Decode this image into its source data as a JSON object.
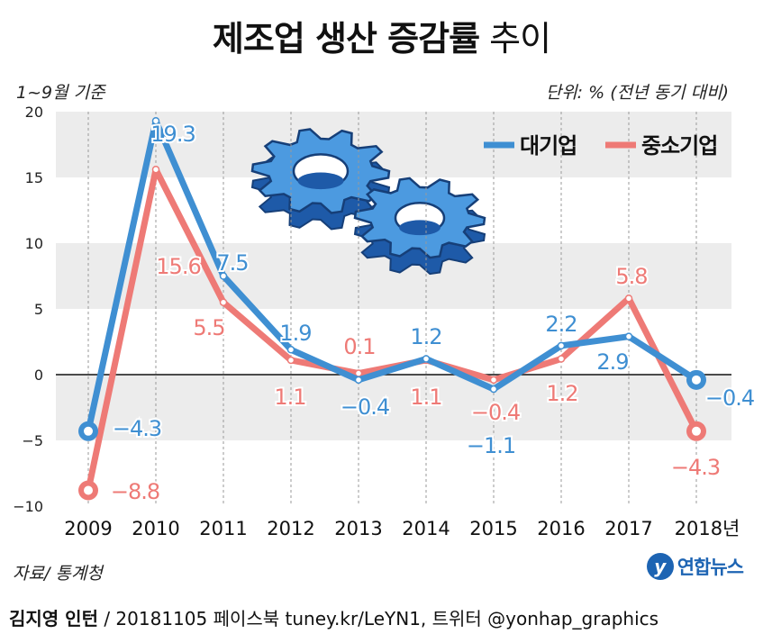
{
  "header": {
    "title_bold": "제조업 생산 증감률",
    "title_light": "추이",
    "note_left": "1~9월 기준",
    "note_right": "단위: % (전년 동기 대비)"
  },
  "source": "자료/ 통계청",
  "logo": {
    "mark": "y",
    "text": "연합뉴스"
  },
  "footer": {
    "author": "김지영 인턴",
    "rest": " / 20181105  페이스북 tuney.kr/LeYN1, 트위터 @yonhap_graphics"
  },
  "colors": {
    "large": "#3f8fd2",
    "sme": "#ee7a76",
    "band": "#ececec"
  },
  "chart_data": {
    "type": "line",
    "title": "제조업 생산 증감률 추이",
    "categories": [
      "2009",
      "2010",
      "2011",
      "2012",
      "2013",
      "2014",
      "2015",
      "2016",
      "2017",
      "2018년"
    ],
    "ylim": [
      -10,
      20
    ],
    "yticks": [
      20,
      15,
      10,
      5,
      0,
      -5,
      -10
    ],
    "ytick_labels": [
      "20",
      "15",
      "10",
      "5",
      "0",
      "−5",
      "−10"
    ],
    "legend_position": "top-right",
    "series": [
      {
        "name": "대기업",
        "color": "#3f8fd2",
        "values": [
          -4.3,
          19.3,
          7.5,
          1.9,
          -0.4,
          1.2,
          -1.1,
          2.2,
          2.9,
          -0.4
        ],
        "labels": [
          "−4.3",
          "19.3",
          "7.5",
          "1.9",
          "−0.4",
          "1.2",
          "−1.1",
          "2.2",
          "2.9",
          "−0.4"
        ]
      },
      {
        "name": "중소기업",
        "color": "#ee7a76",
        "values": [
          -8.8,
          15.6,
          5.5,
          1.1,
          0.1,
          1.1,
          -0.4,
          1.2,
          5.8,
          -4.3
        ],
        "labels": [
          "−8.8",
          "15.6",
          "5.5",
          "1.1",
          "0.1",
          "1.1",
          "−0.4",
          "1.2",
          "5.8",
          "−4.3"
        ]
      }
    ]
  }
}
